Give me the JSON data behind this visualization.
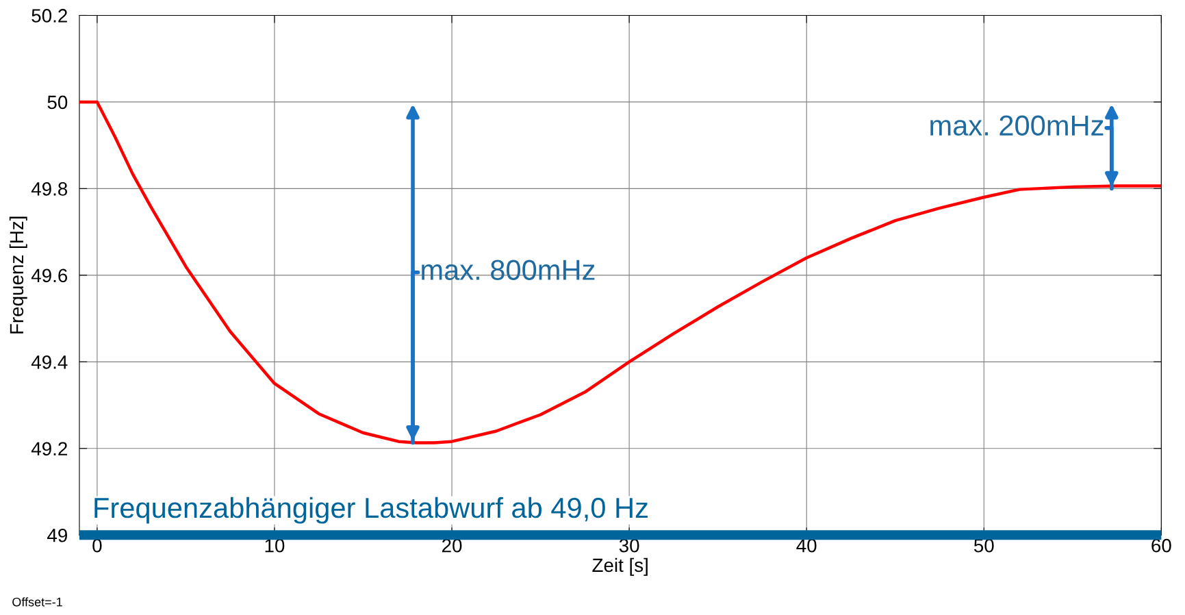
{
  "chart_data": {
    "type": "line",
    "xlabel": "Zeit [s]",
    "ylabel": "Frequenz [Hz]",
    "series": [
      {
        "color": "#ff0000",
        "x": [
          -1,
          0,
          1,
          2,
          3,
          5,
          7.5,
          10,
          12.5,
          15,
          17,
          18,
          19,
          20,
          22.5,
          25,
          27.5,
          30,
          32.5,
          35,
          37.5,
          40,
          42.5,
          45,
          47.5,
          50,
          52,
          55,
          57.5,
          60
        ],
        "values": [
          50.0,
          50.0,
          49.92,
          49.834,
          49.76,
          49.62,
          49.47,
          49.35,
          49.28,
          49.236,
          49.216,
          49.213,
          49.213,
          49.216,
          49.24,
          49.278,
          49.33,
          49.4,
          49.465,
          49.527,
          49.585,
          49.64,
          49.685,
          49.726,
          49.755,
          49.78,
          49.798,
          49.804,
          49.806,
          49.806
        ]
      }
    ],
    "xlim": [
      -1,
      60
    ],
    "xticks": [
      0,
      10,
      20,
      30,
      40,
      50,
      60
    ],
    "ylim": [
      49,
      50.2
    ],
    "yticks": [
      49,
      49.2,
      49.4,
      49.6,
      49.8,
      50,
      50.2
    ],
    "grid": true,
    "line_style": "solid",
    "marker": "none",
    "ref_lines": [
      {
        "axis": "y",
        "value": 49,
        "label": "Frequenzabhängiger Lastabwurf ab 49,0 Hz",
        "color": "#00659a"
      }
    ],
    "annotations": [
      {
        "text": "max. 800mHz",
        "x": 17.8,
        "y": 49.213
      },
      {
        "text": "max. 200mHz",
        "x": 57.2,
        "y": 49.8
      },
      "Offset=-1"
    ]
  }
}
